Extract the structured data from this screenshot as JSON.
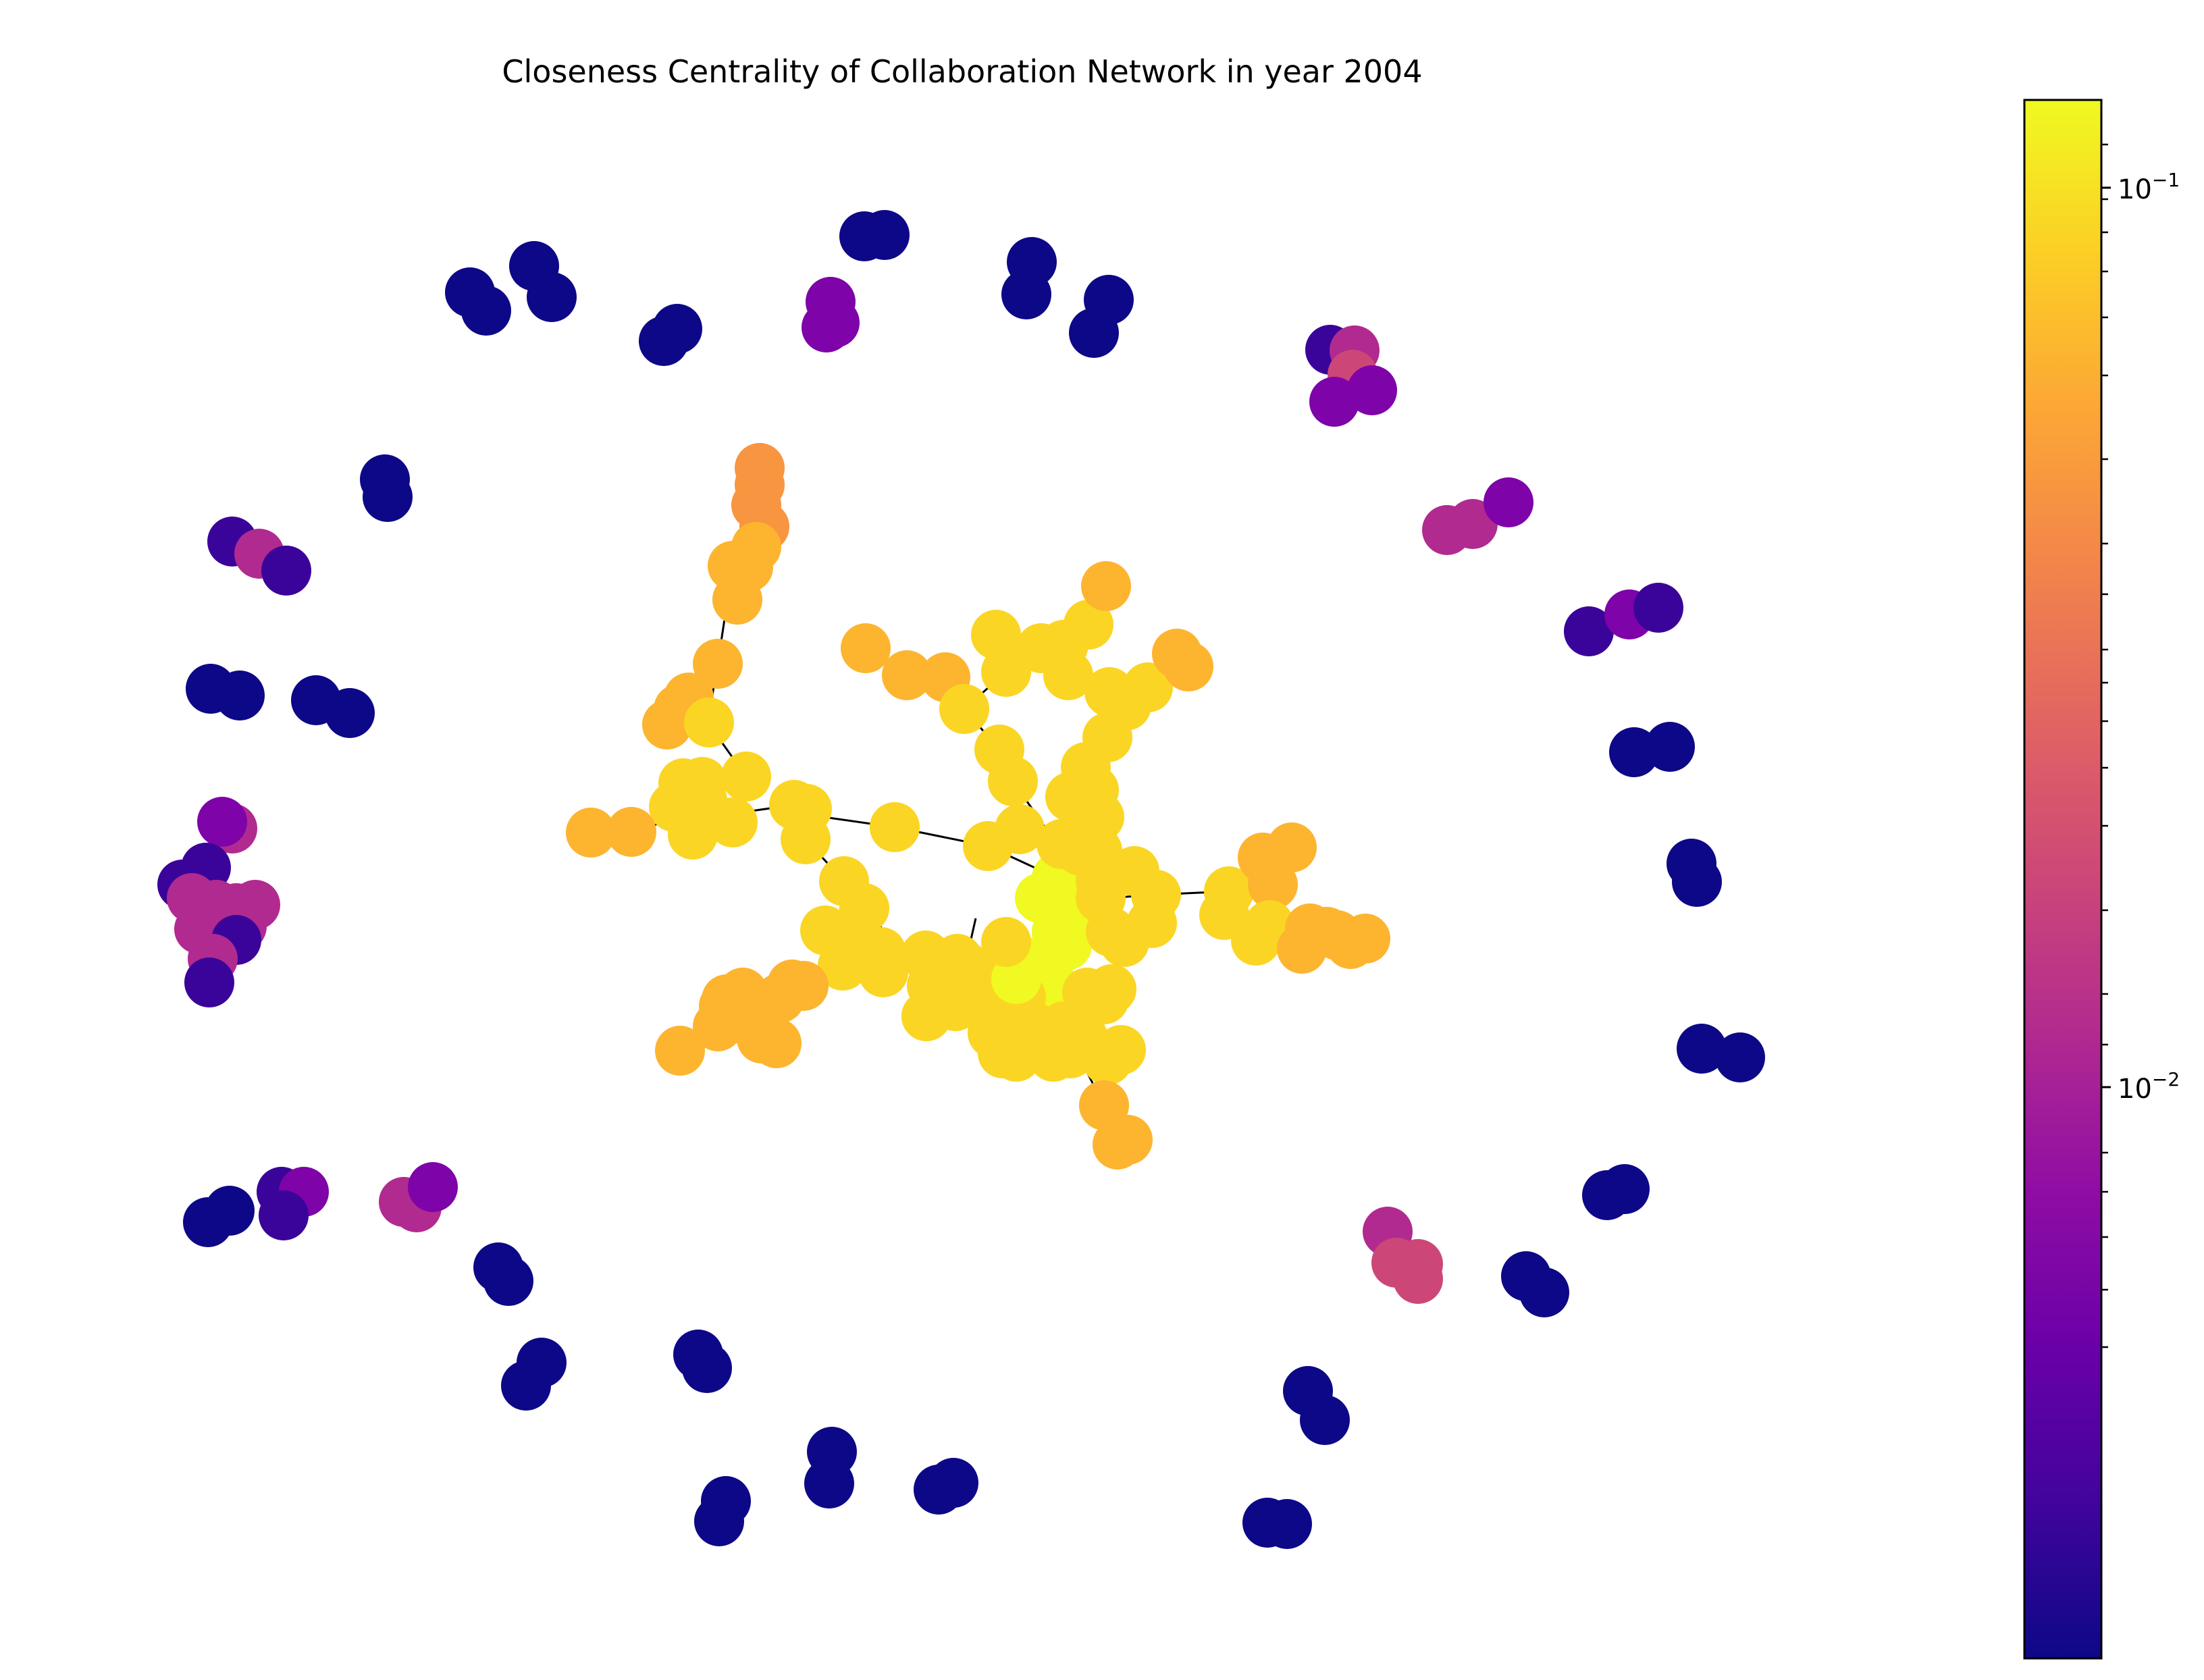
{
  "title": "Closeness Centrality of Collaboration Network in year 2004",
  "colorbar": {
    "colormap": "plasma",
    "scale": "log",
    "ticks": [
      {
        "base": "10",
        "exp": "−1",
        "value": 0.1
      },
      {
        "base": "10",
        "exp": "−2",
        "value": 0.01
      }
    ]
  },
  "network": {
    "color_legend": {
      "deep_blue": "#0d0887",
      "indigo": "#3a049a",
      "purple": "#7e03a8",
      "magenta": "#b12a90",
      "pink": "#cc4778",
      "orange": "#f89540",
      "amber": "#fdb42f",
      "gold": "#fbd524",
      "yellow": "#f0f921"
    },
    "node_count_shown": "approx 230",
    "components": [
      {
        "name": "giant-component",
        "color": "yellow-gold"
      },
      {
        "name": "peripheral-pairs",
        "color": "deep-blue"
      },
      {
        "name": "small-clusters",
        "color": "purple-magenta"
      }
    ]
  }
}
